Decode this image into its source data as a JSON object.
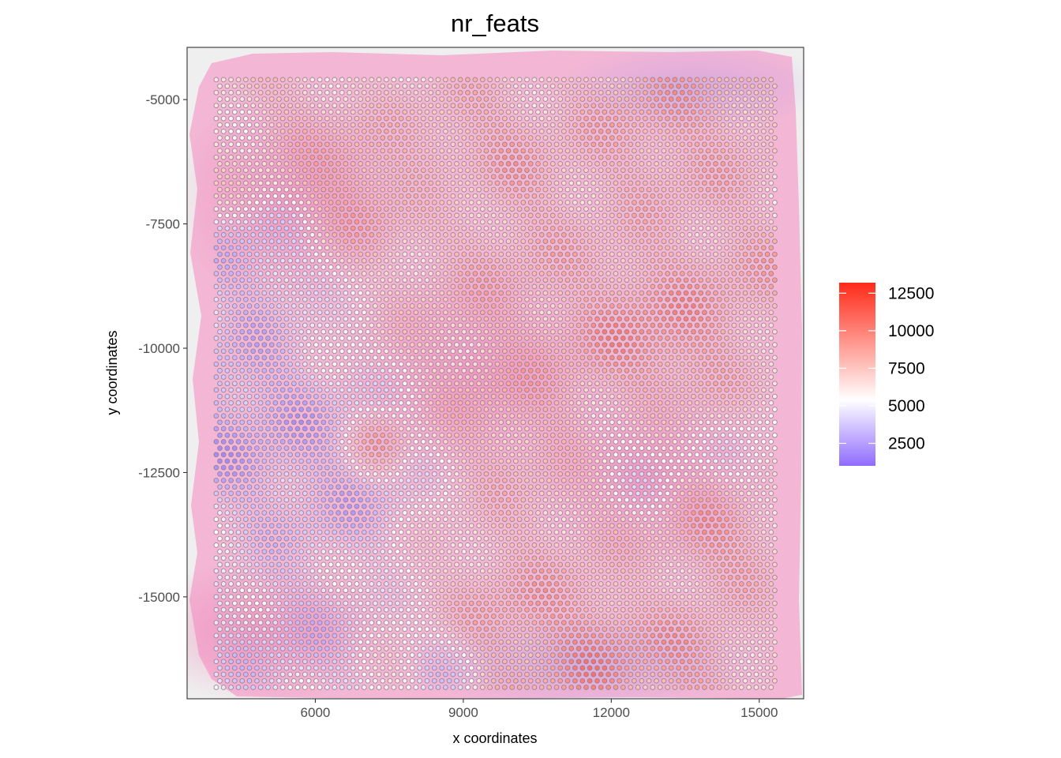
{
  "chart_data": {
    "type": "scatter",
    "title": "nr_feats",
    "xlabel": "x coordinates",
    "ylabel": "y coordinates",
    "xlim": [
      3400,
      15900
    ],
    "ylim": [
      -17050,
      -3950
    ],
    "x_ticks": [
      6000,
      9000,
      12000,
      15000
    ],
    "x_tick_labels": [
      "6000",
      "9000",
      "12000",
      "15000"
    ],
    "y_ticks": [
      -5000,
      -7500,
      -10000,
      -12500,
      -15000
    ],
    "y_tick_labels": [
      "-5000",
      "-7500",
      "-10000",
      "-12500",
      "-15000"
    ],
    "grid": false,
    "background": "tissue image (H&E, pink/purple)",
    "spot_grid": {
      "x_start": 3990,
      "x_end": 15360,
      "y_top": -4600,
      "y_bottom": -16850,
      "col_step": 150,
      "row_step": 130
    },
    "color_scale": {
      "variable": "nr_feats",
      "colors": {
        "low": "#8f6cff",
        "mid": "#ffffff",
        "high": "#ff2a18"
      },
      "range": [
        1000,
        13200
      ],
      "midpoint": 5500,
      "legend_ticks": [
        2500,
        5000,
        7500,
        10000,
        12500
      ],
      "legend_tick_labels": [
        "2500",
        "5000",
        "7500",
        "10000",
        "12500"
      ],
      "legend_position": "right"
    },
    "value_regions": [
      {
        "region": "left tissue edge / central-left pale area",
        "approx_nr_feats": 2000
      },
      {
        "region": "upper-right and right-center",
        "approx_nr_feats": 9000
      },
      {
        "region": "hotspot near x=7200, y=-12000",
        "approx_nr_feats": 12500
      },
      {
        "region": "hotspot near x=12800, y=-9800",
        "approx_nr_feats": 11000
      },
      {
        "region": "lower-center and lower-right",
        "approx_nr_feats": 9500
      }
    ]
  }
}
